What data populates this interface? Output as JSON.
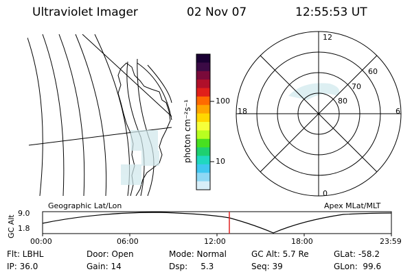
{
  "header": {
    "instrument": "Ultraviolet Imager",
    "date": "02 Nov 07",
    "time": "12:55:53 UT"
  },
  "colorbar": {
    "unit_label": "photon cm⁻²s⁻¹",
    "tick_100": "100",
    "tick_10": "10",
    "colors": [
      "#1a0033",
      "#3b0a45",
      "#7a0a3a",
      "#b0102a",
      "#e0201a",
      "#ff6a00",
      "#ffa500",
      "#ffd700",
      "#f6ff3a",
      "#b8ff20",
      "#48e020",
      "#1ed070",
      "#20d8c0",
      "#40c8f0",
      "#8fd8f4",
      "#d8eef8"
    ]
  },
  "left_map": {
    "label": "Geographic Lat/Lon"
  },
  "polar_plot": {
    "label": "Apex MLat/MLT",
    "mlt_12": "12",
    "mlt_18": "18",
    "mlt_6": "6",
    "mlt_0": "0",
    "lat_60": "60",
    "lat_70": "70",
    "lat_80": "80"
  },
  "alt_plot": {
    "ylabel": "GC Alt",
    "y_top": "9.0",
    "y_bottom": "1.8",
    "x_ticks": [
      "00:00",
      "06:00",
      "12:00",
      "18:00",
      "23:59"
    ]
  },
  "info": {
    "flt": "Flt: LBHL",
    "ip": "IP: 36.0",
    "door": "Door: Open",
    "gain": "Gain: 14",
    "mode": "Mode: Normal",
    "dsp": "Dsp:     5.3",
    "gcalt": "GC Alt: 5.7 Re",
    "seq": "Seq: 39",
    "glat": "GLat: -58.2",
    "glon": "GLon:  99.6"
  }
}
